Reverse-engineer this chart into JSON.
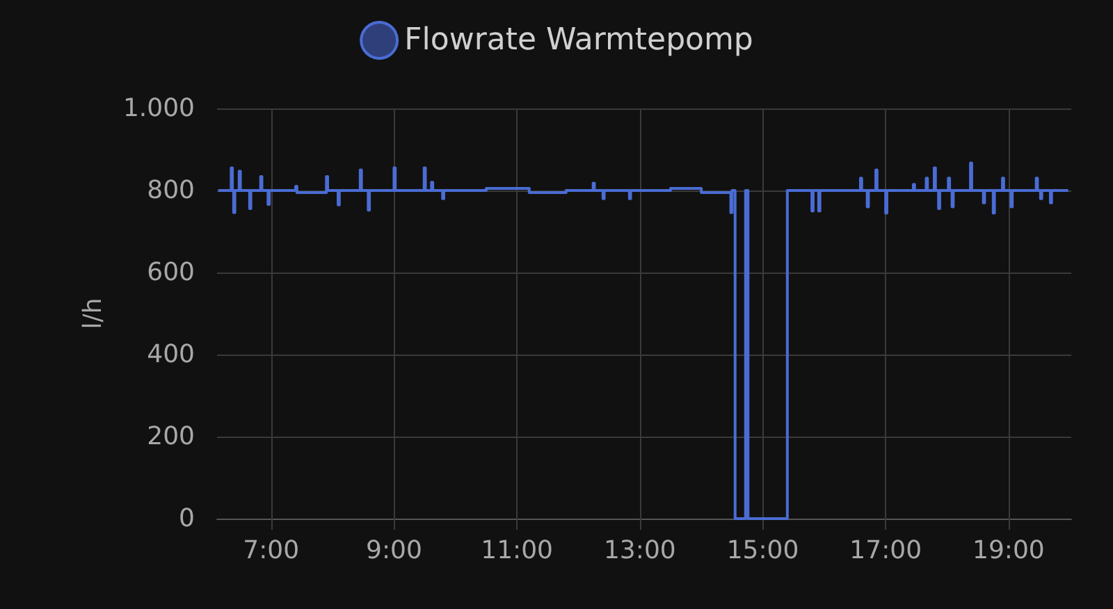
{
  "chart_data": {
    "type": "step",
    "ylabel": "l/h",
    "legend": "top",
    "grid": true,
    "marker": "none",
    "line_style": "solid",
    "xlim": [
      6.12,
      20.02
    ],
    "xticks": [
      {
        "value": 7,
        "label": "7:00"
      },
      {
        "value": 9,
        "label": "9:00"
      },
      {
        "value": 11,
        "label": "11:00"
      },
      {
        "value": 13,
        "label": "13:00"
      },
      {
        "value": 15,
        "label": "15:00"
      },
      {
        "value": 17,
        "label": "17:00"
      },
      {
        "value": 19,
        "label": "19:00"
      }
    ],
    "ylim": [
      0,
      1000
    ],
    "yticks": [
      0,
      200,
      400,
      600,
      800,
      {
        "value": 1000,
        "label": "1.000"
      }
    ],
    "x": [
      6.14,
      6.35,
      6.37,
      6.39,
      6.41,
      6.48,
      6.5,
      6.65,
      6.67,
      6.83,
      6.85,
      6.95,
      6.97,
      7.4,
      7.42,
      7.9,
      7.92,
      8.09,
      8.11,
      8.45,
      8.47,
      8.58,
      8.6,
      9.0,
      9.02,
      9.49,
      9.51,
      9.61,
      9.63,
      9.79,
      9.81,
      10.5,
      11.2,
      11.8,
      12.24,
      12.26,
      12.4,
      12.42,
      12.83,
      12.85,
      13.5,
      14.0,
      14.48,
      14.5,
      14.55,
      14.72,
      14.76,
      15.4,
      15.8,
      15.82,
      15.91,
      15.93,
      16.59,
      16.61,
      16.7,
      16.72,
      16.84,
      16.86,
      17.0,
      17.02,
      17.45,
      17.47,
      17.66,
      17.68,
      17.79,
      17.81,
      17.86,
      17.88,
      18.02,
      18.04,
      18.08,
      18.1,
      18.38,
      18.4,
      18.59,
      18.61,
      18.75,
      18.77,
      18.9,
      18.92,
      19.04,
      19.06,
      19.45,
      19.47,
      19.52,
      19.54,
      19.68,
      19.7,
      19.97
    ],
    "series": [
      {
        "name": "Flowrate Warmtepomp",
        "color": "#4a6cd4",
        "values": [
          800,
          855,
          800,
          746,
          800,
          847,
          800,
          756,
          800,
          834,
          800,
          766,
          800,
          810,
          795,
          834,
          800,
          765,
          800,
          850,
          800,
          752,
          800,
          855,
          800,
          855,
          800,
          820,
          800,
          780,
          800,
          805,
          795,
          800,
          818,
          800,
          780,
          800,
          780,
          800,
          805,
          795,
          746,
          800,
          0,
          800,
          0,
          800,
          750,
          800,
          750,
          800,
          830,
          800,
          760,
          800,
          850,
          800,
          745,
          800,
          815,
          800,
          830,
          800,
          855,
          800,
          756,
          800,
          830,
          800,
          760,
          800,
          867,
          800,
          770,
          800,
          745,
          800,
          830,
          800,
          760,
          800,
          830,
          800,
          780,
          800,
          770,
          800,
          800
        ]
      }
    ]
  }
}
